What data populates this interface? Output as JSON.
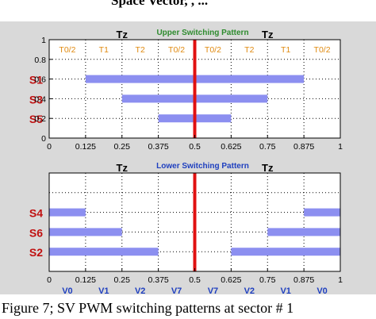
{
  "top_clipped_text": "Space Vector,  , ...",
  "figure_caption": "Figure 7; SV PWM switching patterns at sector # 1",
  "colors": {
    "panel_bg": "#d9d9d9",
    "axes_bg": "#ffffff",
    "bar": "#8c8ff0",
    "center_line": "#e01010",
    "segment_label": "#e08a10",
    "switch_label": "#c01010",
    "vector_label": "#1e3fbf",
    "upper_title": "#2e8b2e",
    "lower_title": "#1e3fbf",
    "grid": "#000000"
  },
  "chart_data": [
    {
      "type": "bar",
      "orientation": "horizontal-gantt",
      "title": "Upper Switching Pattern",
      "xlim": [
        0,
        1
      ],
      "ylim": [
        0,
        1
      ],
      "x_ticks": [
        "0",
        "0.125",
        "0.25",
        "0.375",
        "0.5",
        "0.625",
        "0.75",
        "0.875",
        "1"
      ],
      "y_ticks": [
        "0",
        "0.2",
        "0.4",
        "0.6",
        "0.8",
        "1"
      ],
      "grid": true,
      "center_line_x": 0.5,
      "tz_labels": [
        {
          "text": "Tz",
          "x": 0.25
        },
        {
          "text": "Tz",
          "x": 0.75
        }
      ],
      "segment_labels": [
        {
          "text": "T0/2",
          "x": 0.0625
        },
        {
          "text": "T1",
          "x": 0.1875
        },
        {
          "text": "T2",
          "x": 0.3125
        },
        {
          "text": "T0/2",
          "x": 0.4375
        },
        {
          "text": "T0/2",
          "x": 0.5625
        },
        {
          "text": "T2",
          "x": 0.6875
        },
        {
          "text": "T1",
          "x": 0.8125
        },
        {
          "text": "T0/2",
          "x": 0.9375
        }
      ],
      "series": [
        {
          "name": "S1",
          "y": 0.6,
          "start": 0.125,
          "end": 0.875
        },
        {
          "name": "S3",
          "y": 0.4,
          "start": 0.25,
          "end": 0.75
        },
        {
          "name": "S5",
          "y": 0.2,
          "start": 0.375,
          "end": 0.625
        }
      ]
    },
    {
      "type": "bar",
      "orientation": "horizontal-gantt",
      "title": "Lower Switching Pattern",
      "xlim": [
        0,
        1
      ],
      "ylim": [
        0,
        1
      ],
      "x_ticks": [
        "0",
        "0.125",
        "0.25",
        "0.375",
        "0.5",
        "0.625",
        "0.75",
        "0.875",
        "1"
      ],
      "y_ticks": [],
      "grid": true,
      "center_line_x": 0.5,
      "tz_labels": [
        {
          "text": "Tz",
          "x": 0.25
        },
        {
          "text": "Tz",
          "x": 0.75
        }
      ],
      "vector_labels": [
        {
          "text": "V0",
          "x": 0.0625
        },
        {
          "text": "V1",
          "x": 0.1875
        },
        {
          "text": "V2",
          "x": 0.3125
        },
        {
          "text": "V7",
          "x": 0.4375
        },
        {
          "text": "V7",
          "x": 0.5625
        },
        {
          "text": "V2",
          "x": 0.6875
        },
        {
          "text": "V1",
          "x": 0.8125
        },
        {
          "text": "V0",
          "x": 0.9375
        }
      ],
      "series": [
        {
          "name": "S4",
          "y": 0.6,
          "segments": [
            [
              0,
              0.125
            ],
            [
              0.875,
              1
            ]
          ]
        },
        {
          "name": "S6",
          "y": 0.4,
          "segments": [
            [
              0,
              0.25
            ],
            [
              0.75,
              1
            ]
          ]
        },
        {
          "name": "S2",
          "y": 0.2,
          "segments": [
            [
              0,
              0.375
            ],
            [
              0.625,
              1
            ]
          ]
        }
      ]
    }
  ]
}
